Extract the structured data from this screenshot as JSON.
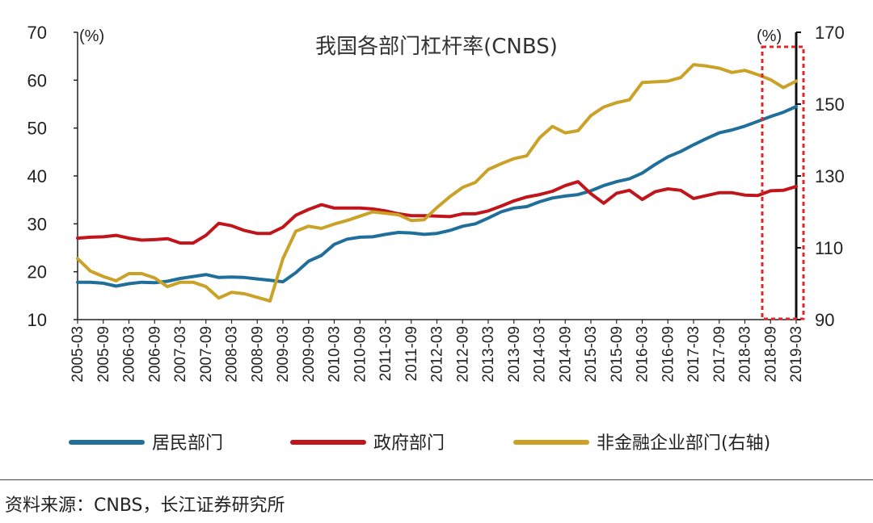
{
  "chart_data": {
    "type": "line",
    "title": "我国各部门杠杆率(CNBS)",
    "y_left_unit": "(%)",
    "y_right_unit": "(%)",
    "y_left_lim": [
      10,
      70
    ],
    "y_right_lim": [
      90,
      170
    ],
    "y_left_ticks": [
      "10",
      "20",
      "30",
      "40",
      "50",
      "60",
      "70"
    ],
    "y_right_ticks": [
      "90",
      "110",
      "130",
      "150",
      "170"
    ],
    "x_ticks": [
      "2005-03",
      "2005-09",
      "2006-03",
      "2006-09",
      "2007-03",
      "2007-09",
      "2008-03",
      "2008-09",
      "2009-03",
      "2009-09",
      "2010-03",
      "2010-09",
      "2011-03",
      "2011-09",
      "2012-03",
      "2012-09",
      "2013-03",
      "2013-09",
      "2014-03",
      "2014-09",
      "2015-03",
      "2015-09",
      "2016-03",
      "2016-09",
      "2017-03",
      "2017-09",
      "2018-03",
      "2018-09",
      "2019-03"
    ],
    "x": [
      "2005-03",
      "2005-06",
      "2005-09",
      "2005-12",
      "2006-03",
      "2006-06",
      "2006-09",
      "2006-12",
      "2007-03",
      "2007-06",
      "2007-09",
      "2007-12",
      "2008-03",
      "2008-06",
      "2008-09",
      "2008-12",
      "2009-03",
      "2009-06",
      "2009-09",
      "2009-12",
      "2010-03",
      "2010-06",
      "2010-09",
      "2010-12",
      "2011-03",
      "2011-06",
      "2011-09",
      "2011-12",
      "2012-03",
      "2012-06",
      "2012-09",
      "2012-12",
      "2013-03",
      "2013-06",
      "2013-09",
      "2013-12",
      "2014-03",
      "2014-06",
      "2014-09",
      "2014-12",
      "2015-03",
      "2015-06",
      "2015-09",
      "2015-12",
      "2016-03",
      "2016-06",
      "2016-09",
      "2016-12",
      "2017-03",
      "2017-06",
      "2017-09",
      "2017-12",
      "2018-03",
      "2018-06",
      "2018-09",
      "2018-12",
      "2019-03"
    ],
    "series": [
      {
        "name": "居民部门",
        "axis": "left",
        "color": "#1f6f9a",
        "values": [
          17.8,
          17.8,
          17.6,
          17.0,
          17.5,
          17.8,
          17.7,
          18.0,
          18.6,
          19.0,
          19.4,
          18.8,
          18.9,
          18.8,
          18.5,
          18.2,
          17.9,
          19.8,
          22.2,
          23.4,
          25.7,
          26.8,
          27.2,
          27.3,
          27.8,
          28.2,
          28.1,
          27.8,
          28.0,
          28.6,
          29.5,
          30.0,
          31.2,
          32.5,
          33.3,
          33.6,
          34.6,
          35.4,
          35.8,
          36.1,
          36.9,
          38.0,
          38.8,
          39.4,
          40.6,
          42.4,
          44.0,
          45.1,
          46.5,
          47.8,
          49.0,
          49.6,
          50.4,
          51.4,
          52.4,
          53.3,
          54.5
        ]
      },
      {
        "name": "政府部门",
        "axis": "left",
        "color": "#c0161b",
        "values": [
          27.0,
          27.2,
          27.3,
          27.6,
          27.0,
          26.6,
          26.7,
          26.9,
          26.0,
          26.0,
          27.6,
          30.1,
          29.6,
          28.6,
          28.0,
          28.0,
          29.3,
          31.8,
          33.0,
          34.0,
          33.3,
          33.3,
          33.3,
          33.1,
          32.7,
          32.1,
          31.7,
          31.7,
          31.6,
          31.5,
          32.1,
          32.1,
          32.7,
          33.7,
          34.8,
          35.6,
          36.1,
          36.8,
          38.0,
          38.8,
          36.3,
          34.3,
          36.4,
          37.0,
          35.1,
          36.7,
          37.3,
          37.0,
          35.3,
          35.9,
          36.5,
          36.5,
          36.0,
          35.9,
          36.9,
          37.0,
          37.8
        ]
      },
      {
        "name": "非金融企业部门(右轴)",
        "axis": "right",
        "color": "#c9a227",
        "values": [
          107.0,
          103.5,
          102.0,
          100.8,
          102.8,
          102.8,
          101.6,
          99.2,
          100.4,
          100.4,
          99.2,
          96.0,
          97.6,
          97.2,
          96.2,
          95.2,
          107.0,
          114.6,
          116.0,
          115.4,
          116.6,
          117.6,
          118.8,
          120.0,
          119.6,
          119.2,
          117.6,
          117.8,
          121.2,
          124.2,
          126.8,
          128.2,
          131.8,
          133.4,
          134.8,
          135.6,
          140.6,
          143.8,
          142.0,
          142.6,
          146.8,
          149.2,
          150.4,
          151.2,
          156.0,
          156.2,
          156.4,
          157.4,
          161.0,
          160.6,
          160.0,
          158.8,
          159.4,
          158.2,
          156.8,
          154.6,
          156.4
        ]
      }
    ],
    "legend_position": "bottom",
    "grid": false
  },
  "source_text": "资料来源：CNBS，长江证券研究所"
}
